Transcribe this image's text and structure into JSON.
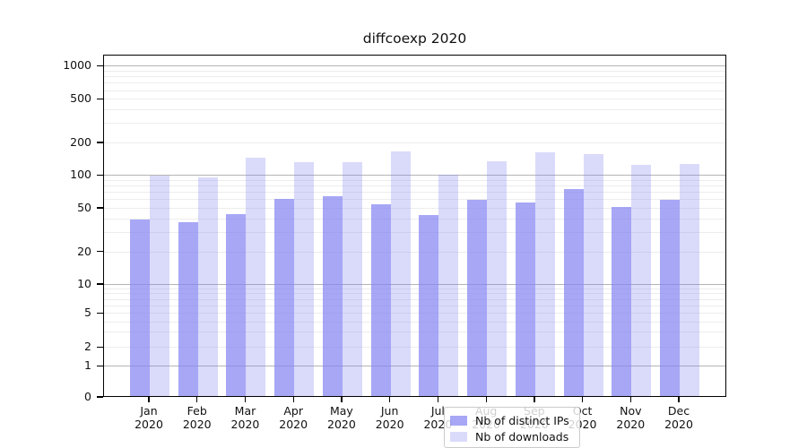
{
  "title": "diffcoexp 2020",
  "legend": {
    "items": [
      {
        "label": "Nb of distinct IPs",
        "color": "#8585f2",
        "opacity": 0.72
      },
      {
        "label": "Nb of downloads",
        "color": "#8585f2",
        "opacity": 0.3
      }
    ]
  },
  "y_axis": {
    "tick_labels": [
      "0",
      "1",
      "2",
      "5",
      "10",
      "20",
      "50",
      "100",
      "200",
      "500",
      "1000"
    ]
  },
  "x_axis": {
    "tick_labels": [
      "Jan 2020",
      "Feb 2020",
      "Mar 2020",
      "Apr 2020",
      "May 2020",
      "Jun 2020",
      "Jul 2020",
      "Aug 2020",
      "Sep 2020",
      "Oct 2020",
      "Nov 2020",
      "Dec 2020"
    ]
  },
  "chart_data": {
    "type": "bar",
    "title": "diffcoexp 2020",
    "categories": [
      "Jan 2020",
      "Feb 2020",
      "Mar 2020",
      "Apr 2020",
      "May 2020",
      "Jun 2020",
      "Jul 2020",
      "Aug 2020",
      "Sep 2020",
      "Oct 2020",
      "Nov 2020",
      "Dec 2020"
    ],
    "series": [
      {
        "name": "Nb of distinct IPs",
        "color": "#8585f2",
        "opacity": 0.72,
        "values": [
          40,
          38,
          45,
          62,
          65,
          55,
          44,
          60,
          57,
          76,
          52,
          60
        ]
      },
      {
        "name": "Nb of downloads",
        "color": "#8585f2",
        "opacity": 0.3,
        "values": [
          100,
          96,
          148,
          135,
          133,
          167,
          103,
          136,
          164,
          160,
          127,
          129
        ]
      }
    ],
    "y_ticks": [
      0,
      1,
      2,
      5,
      10,
      20,
      50,
      100,
      200,
      500,
      1000
    ],
    "y_scale": "log-like (symlog) with 0 baseline",
    "ylim": [
      0,
      1270
    ],
    "grid": true,
    "gridline_major_values": [
      1,
      10,
      100,
      1000
    ],
    "legend_position": "lower center"
  }
}
